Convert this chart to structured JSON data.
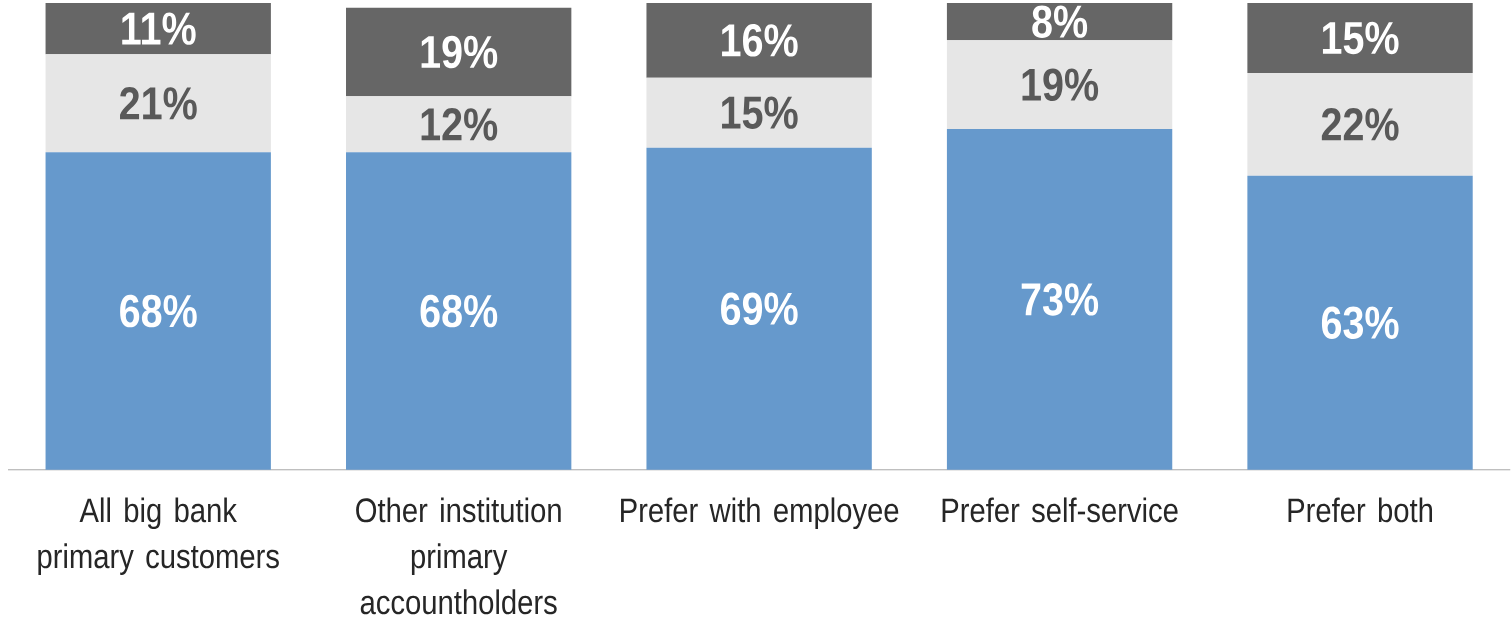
{
  "chart_data": {
    "type": "bar",
    "stacked": true,
    "categories": [
      "All big bank primary customers",
      "Other institution primary accountholders",
      "Prefer with employee",
      "Prefer self-service",
      "Prefer both"
    ],
    "series": [
      {
        "color": "#6699cc",
        "values": [
          68,
          68,
          69,
          73,
          63
        ],
        "value_labels": [
          "68%",
          "68%",
          "69%",
          "73%",
          "63%"
        ]
      },
      {
        "color": "#e6e6e6",
        "values": [
          21,
          12,
          15,
          19,
          22
        ],
        "value_labels": [
          "21%",
          "12%",
          "15%",
          "19%",
          "22%"
        ]
      },
      {
        "color": "#666666",
        "values": [
          11,
          19,
          16,
          8,
          15
        ],
        "value_labels": [
          "11%",
          "19%",
          "16%",
          "8%",
          "15%"
        ]
      }
    ],
    "ylim": [
      0,
      100
    ],
    "tick_labels": "x"
  }
}
